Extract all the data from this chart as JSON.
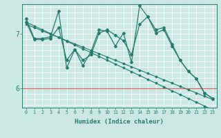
{
  "xlabel": "Humidex (Indice chaleur)",
  "background_color": "#cce8e4",
  "line_color": "#267b6e",
  "grid_color": "#ffffff",
  "red_line_color": "#e06060",
  "xlim": [
    -0.5,
    23.5
  ],
  "ylim": [
    5.65,
    7.55
  ],
  "xticks": [
    0,
    1,
    2,
    3,
    4,
    5,
    6,
    7,
    8,
    9,
    10,
    11,
    12,
    13,
    14,
    15,
    16,
    17,
    18,
    19,
    20,
    21,
    22,
    23
  ],
  "yticks": [
    6,
    7
  ],
  "red_hline": 6.0,
  "series": [
    [
      7.28,
      6.92,
      6.92,
      6.95,
      7.42,
      6.38,
      6.72,
      6.42,
      6.68,
      7.08,
      7.05,
      6.78,
      7.02,
      6.48,
      7.52,
      7.32,
      7.08,
      7.12,
      6.82,
      6.52,
      6.32,
      6.18,
      5.92,
      5.82
    ],
    [
      7.22,
      6.9,
      6.9,
      6.92,
      7.12,
      6.52,
      6.72,
      6.52,
      6.62,
      7.02,
      7.08,
      6.98,
      6.88,
      6.62,
      7.18,
      7.32,
      7.02,
      7.08,
      6.78,
      6.52,
      6.32,
      6.18,
      5.92,
      5.82
    ],
    [
      7.2,
      6.88,
      6.88,
      6.9,
      7.0,
      6.72,
      6.82,
      6.72,
      6.78,
      6.92,
      6.98,
      6.9,
      6.85,
      6.72,
      7.05,
      7.08,
      6.88,
      6.92,
      6.68,
      6.45,
      6.28,
      6.12,
      5.88,
      5.8
    ],
    [
      7.18,
      6.85,
      6.85,
      6.88,
      6.92,
      6.65,
      6.75,
      6.65,
      6.7,
      6.85,
      6.92,
      6.82,
      6.78,
      6.65,
      6.98,
      7.0,
      6.82,
      6.85,
      6.62,
      6.38,
      6.22,
      6.05,
      5.82,
      5.75
    ]
  ],
  "trend_series": [
    [
      7.22,
      7.15,
      7.08,
      7.01,
      6.94,
      6.87,
      6.8,
      6.73,
      6.66,
      6.59,
      6.52,
      6.45,
      6.38,
      6.31,
      6.24,
      6.17,
      6.1,
      6.03,
      5.96,
      5.89,
      5.82,
      5.75,
      5.68,
      5.61
    ],
    [
      7.18,
      7.12,
      7.06,
      7.0,
      6.94,
      6.88,
      6.82,
      6.76,
      6.7,
      6.64,
      6.58,
      6.52,
      6.46,
      6.4,
      6.34,
      6.28,
      6.22,
      6.16,
      6.1,
      6.04,
      5.98,
      5.92,
      5.86,
      5.8
    ]
  ]
}
